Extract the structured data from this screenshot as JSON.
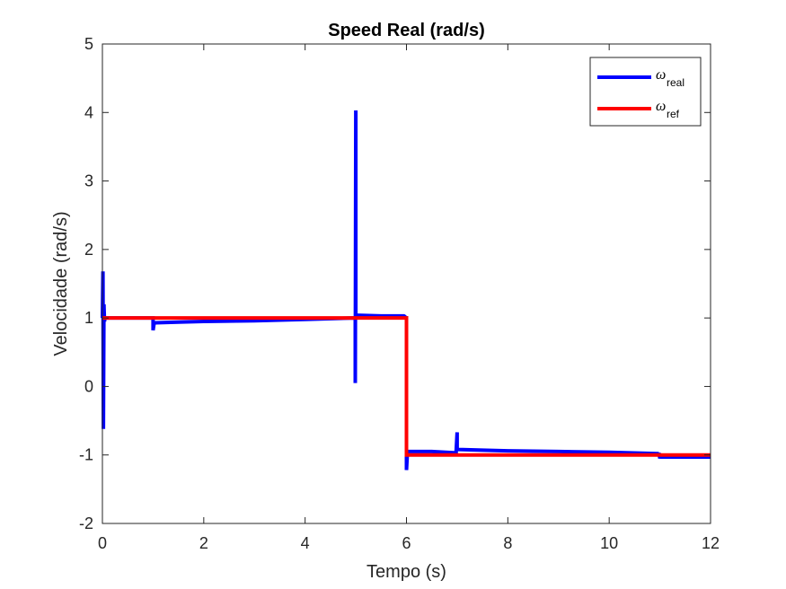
{
  "chart_data": {
    "type": "line",
    "title": "Speed Real (rad/s)",
    "xlabel": "Tempo (s)",
    "ylabel": "Velocidade (rad/s)",
    "xlim": [
      0,
      12
    ],
    "ylim": [
      -2,
      5
    ],
    "xticks": [
      0,
      2,
      4,
      6,
      8,
      10,
      12
    ],
    "yticks": [
      -2,
      -1,
      0,
      1,
      2,
      3,
      4,
      5
    ],
    "grid": false,
    "legend": {
      "placement": "top-right",
      "entries": [
        {
          "symbol": "ω",
          "subscript": "real",
          "color": "#0000ff"
        },
        {
          "symbol": "ω",
          "subscript": "ref",
          "color": "#ff0000"
        }
      ]
    },
    "series": [
      {
        "color": "#0000ff",
        "x": [
          0.0,
          0.01,
          0.02,
          0.03,
          0.04,
          0.05,
          1.0,
          1.0,
          1.02,
          1.05,
          1.5,
          2.0,
          3.0,
          4.0,
          4.99,
          4.99,
          5.0,
          5.0,
          5.01,
          5.01,
          5.05,
          5.5,
          5.95,
          5.97,
          5.99,
          6.0,
          6.0,
          6.02,
          6.05,
          6.5,
          6.98,
          6.98,
          7.0,
          7.0,
          7.03,
          7.5,
          8.0,
          9.0,
          10.0,
          10.98,
          10.98,
          11.0,
          11.0,
          11.05,
          11.5,
          12.0
        ],
        "y": [
          1.0,
          1.68,
          -0.62,
          1.2,
          0.95,
          1.0,
          1.0,
          0.82,
          0.92,
          0.93,
          0.94,
          0.95,
          0.96,
          0.98,
          1.0,
          0.05,
          4.03,
          1.04,
          1.04,
          1.04,
          1.04,
          1.03,
          1.03,
          1.02,
          1.0,
          1.0,
          -1.22,
          -0.95,
          -0.95,
          -0.95,
          -0.97,
          -0.95,
          -0.67,
          -0.92,
          -0.92,
          -0.93,
          -0.94,
          -0.95,
          -0.96,
          -0.98,
          -0.97,
          -1.05,
          -1.03,
          -1.03,
          -1.03,
          -1.03
        ]
      },
      {
        "color": "#ff0000",
        "x": [
          0.0,
          6.0,
          6.0,
          12.0
        ],
        "y": [
          1.0,
          1.0,
          -1.0,
          -1.0
        ]
      }
    ]
  }
}
